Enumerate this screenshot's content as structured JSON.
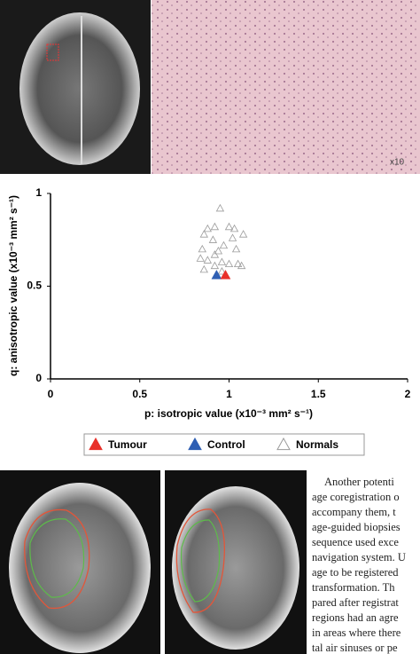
{
  "figure": {
    "magnification_label": "x10"
  },
  "chart_data": {
    "type": "scatter",
    "x_label": "p: isotropic value (x10⁻³ mm² s⁻¹)",
    "y_label": "q: anisotropic value (x10⁻³ mm² s⁻¹)",
    "xlim": [
      0,
      2
    ],
    "ylim": [
      0,
      1
    ],
    "xticks": [
      0,
      0.5,
      1,
      1.5,
      2
    ],
    "yticks": [
      0,
      0.5,
      1
    ],
    "series": [
      {
        "name": "Tumour",
        "color": "#e8302a",
        "filled": true,
        "x": [
          0.98
        ],
        "y": [
          0.56
        ]
      },
      {
        "name": "Control",
        "color": "#2f5fb3",
        "filled": true,
        "x": [
          0.93
        ],
        "y": [
          0.56
        ]
      },
      {
        "name": "Normals",
        "color": "#9a9a9a",
        "filled": false,
        "x": [
          0.95,
          0.88,
          0.92,
          1.0,
          0.86,
          1.03,
          1.08,
          1.02,
          0.91,
          0.85,
          0.94,
          0.97,
          1.04,
          0.84,
          0.92,
          0.88,
          0.96,
          0.92,
          1.0,
          1.05,
          1.07,
          0.96,
          0.86
        ],
        "y": [
          0.92,
          0.81,
          0.82,
          0.82,
          0.78,
          0.81,
          0.78,
          0.76,
          0.75,
          0.7,
          0.69,
          0.72,
          0.7,
          0.65,
          0.67,
          0.64,
          0.63,
          0.61,
          0.62,
          0.62,
          0.61,
          0.58,
          0.59
        ]
      }
    ]
  },
  "body_text": {
    "lines": [
      "Another potenti",
      "age coregistration o",
      "accompany them, t",
      "age-guided biopsies",
      "sequence used exce",
      "navigation system. U",
      "age to be registered",
      "transformation. Th",
      "pared after registrat",
      "regions had an agre",
      "in areas where there",
      "tal air sinuses or pe"
    ]
  }
}
